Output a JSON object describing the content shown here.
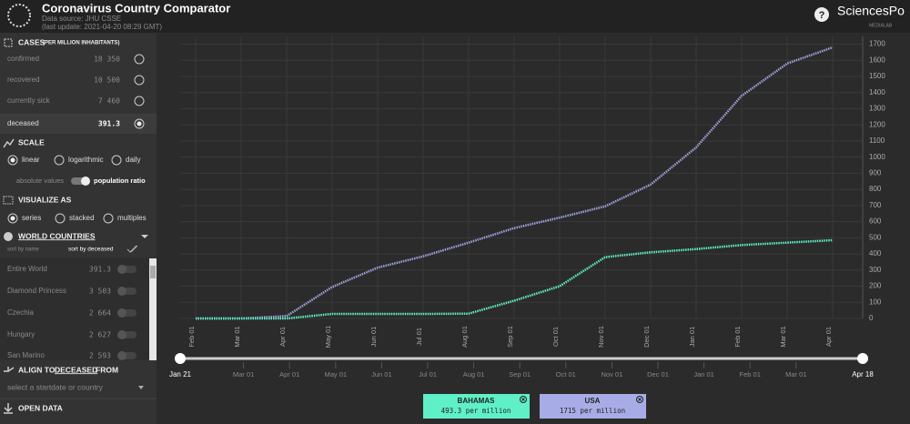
{
  "header": {
    "title": "Coronavirus Country Comparator",
    "source": "Data source: JHU CSSE",
    "updated": "(last update: 2021-04-20 08:29 GMT)",
    "brand": "SciencesPo",
    "brand_sub": "MÉDIALAB",
    "help": "?"
  },
  "sidebar": {
    "cases": {
      "title": "CASES",
      "subtitle": "(PER MILLION INHABITANTS)",
      "rows": [
        {
          "label": "confirmed",
          "value": "18 350"
        },
        {
          "label": "recovered",
          "value": "10 500"
        },
        {
          "label": "currently sick",
          "value": "7 460"
        },
        {
          "label": "deceased",
          "value": "391.3"
        }
      ]
    },
    "scale": {
      "title": "SCALE",
      "options": [
        "linear",
        "logarithmic",
        "daily"
      ],
      "toggle": [
        "absolute values",
        "population ratio"
      ]
    },
    "visualize": {
      "title": "VISUALIZE AS",
      "options": [
        "series",
        "stacked",
        "multiples"
      ]
    },
    "world": {
      "title": "WORLD COUNTRIES",
      "sort": [
        "sort by name",
        "sort by deceased"
      ],
      "rows": [
        {
          "label": "Entire World",
          "value": "391.3"
        },
        {
          "label": "Diamond Princess",
          "value": "3 503"
        },
        {
          "label": "Czechia",
          "value": "2 664"
        },
        {
          "label": "Hungary",
          "value": "2 627"
        },
        {
          "label": "San Marino",
          "value": "2 593"
        }
      ]
    },
    "align": {
      "prefix": "ALIGN TO",
      "metric": "DECEASED",
      "suffix": "FROM",
      "placeholder": "select a startdate or country"
    },
    "open": "OPEN DATA"
  },
  "chart_data": {
    "type": "line",
    "x": [
      "Feb 01",
      "Mar 01",
      "Apr 01",
      "May 01",
      "Jun 01",
      "Jul 01",
      "Aug 01",
      "Sep 01",
      "Oct 01",
      "Nov 01",
      "Dec 01",
      "Jan 01",
      "Feb 01",
      "Mar 01",
      "Apr 01"
    ],
    "series": [
      {
        "name": "USA",
        "color": "#9fa3dd",
        "latest": "1715 per million",
        "chip": "#a8ace6",
        "values": [
          0,
          0,
          15,
          195,
          315,
          385,
          470,
          560,
          625,
          695,
          830,
          1060,
          1380,
          1580,
          1680
        ]
      },
      {
        "name": "BAHAMAS",
        "color": "#5ff0c8",
        "latest": "493.3 per million",
        "chip": "#5ff0c8",
        "values": [
          0,
          0,
          0,
          28,
          28,
          28,
          30,
          110,
          200,
          380,
          410,
          430,
          455,
          470,
          485
        ]
      }
    ],
    "ylim": [
      0,
      1720
    ],
    "yticks": [
      0,
      100,
      200,
      300,
      400,
      500,
      600,
      700,
      800,
      900,
      1000,
      1100,
      1200,
      1300,
      1400,
      1500,
      1600,
      1700
    ],
    "grid": true
  },
  "slider": {
    "start": "Jan 21",
    "end": "Apr 18"
  }
}
